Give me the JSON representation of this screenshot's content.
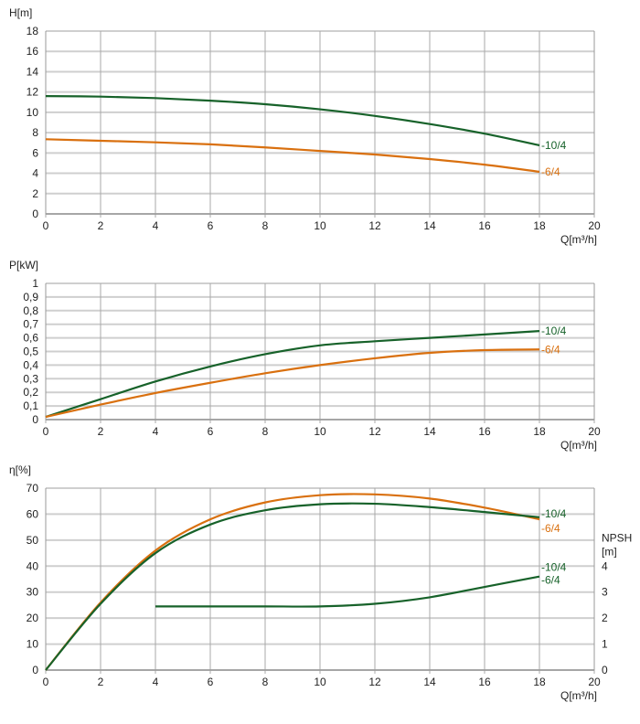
{
  "colors": {
    "series_10_4": "#17622a",
    "series_6_4": "#d9700f",
    "grid_h": "#cfcfcf",
    "grid_v": "#a8a8a8"
  },
  "chart_data": [
    {
      "type": "line",
      "ylabel": "H[m]",
      "xlabel": "Q[m³/h]",
      "xlim": [
        0,
        20
      ],
      "ylim": [
        0,
        18
      ],
      "grid": true,
      "x_ticks": [
        "0",
        "2",
        "4",
        "6",
        "8",
        "10",
        "12",
        "14",
        "16",
        "18",
        "20"
      ],
      "y_ticks": [
        "0",
        "2",
        "4",
        "6",
        "8",
        "10",
        "12",
        "14",
        "16",
        "18"
      ],
      "x": [
        0,
        2,
        4,
        6,
        8,
        10,
        12,
        14,
        16,
        18
      ],
      "series": [
        {
          "name": "-10/4",
          "color": "#17622a",
          "values": [
            11.6,
            11.55,
            11.4,
            11.15,
            10.8,
            10.3,
            9.65,
            8.85,
            7.9,
            6.75
          ]
        },
        {
          "name": "-6/4",
          "color": "#d9700f",
          "values": [
            7.35,
            7.2,
            7.05,
            6.85,
            6.55,
            6.2,
            5.85,
            5.4,
            4.85,
            4.15
          ]
        }
      ]
    },
    {
      "type": "line",
      "ylabel": "P[kW]",
      "xlabel": "Q[m³/h]",
      "xlim": [
        0,
        20
      ],
      "ylim": [
        0,
        1
      ],
      "grid": true,
      "x_ticks": [
        "0",
        "2",
        "4",
        "6",
        "8",
        "10",
        "12",
        "14",
        "16",
        "18",
        "20"
      ],
      "y_ticks": [
        "0",
        "0,1",
        "0,2",
        "0,3",
        "0,4",
        "0,5",
        "0,6",
        "0,7",
        "0,8",
        "0,9",
        "1"
      ],
      "x": [
        0,
        2,
        4,
        6,
        8,
        10,
        12,
        14,
        16,
        18
      ],
      "series": [
        {
          "name": "-10/4",
          "color": "#17622a",
          "values": [
            0.02,
            0.15,
            0.28,
            0.39,
            0.48,
            0.545,
            0.575,
            0.6,
            0.625,
            0.65
          ]
        },
        {
          "name": "-6/4",
          "color": "#d9700f",
          "values": [
            0.02,
            0.11,
            0.195,
            0.27,
            0.34,
            0.4,
            0.45,
            0.49,
            0.51,
            0.515
          ]
        }
      ]
    },
    {
      "type": "line",
      "ylabel": "η[%]",
      "ylabel_right": "NPSH [m]",
      "xlabel": "Q[m³/h]",
      "xlim": [
        0,
        20
      ],
      "ylim": [
        0,
        70
      ],
      "ylim_right": [
        0,
        7
      ],
      "grid": true,
      "x_ticks": [
        "0",
        "2",
        "4",
        "6",
        "8",
        "10",
        "12",
        "14",
        "16",
        "18",
        "20"
      ],
      "y_ticks": [
        "0",
        "10",
        "20",
        "30",
        "40",
        "50",
        "60",
        "70"
      ],
      "y_ticks_right": [
        "0",
        "1",
        "2",
        "3",
        "4"
      ],
      "x": [
        0,
        2,
        4,
        6,
        8,
        10,
        12,
        14,
        16,
        18
      ],
      "series": [
        {
          "name": "-6/4",
          "color": "#d9700f",
          "axis": "left",
          "values": [
            0,
            26,
            46,
            58,
            64.5,
            67.3,
            67.6,
            66,
            62.5,
            58
          ]
        },
        {
          "name": "-10/4",
          "color": "#17622a",
          "axis": "left",
          "values": [
            0,
            25.5,
            45,
            56,
            61.5,
            63.8,
            64,
            62.7,
            60.8,
            58.8
          ]
        }
      ],
      "npsh": {
        "names": [
          "-10/4",
          "-6/4"
        ],
        "color": "#17622a",
        "x": [
          4,
          6,
          8,
          10,
          12,
          14,
          16,
          18
        ],
        "values": [
          2.45,
          2.45,
          2.45,
          2.45,
          2.55,
          2.8,
          3.2,
          3.6
        ]
      }
    }
  ]
}
